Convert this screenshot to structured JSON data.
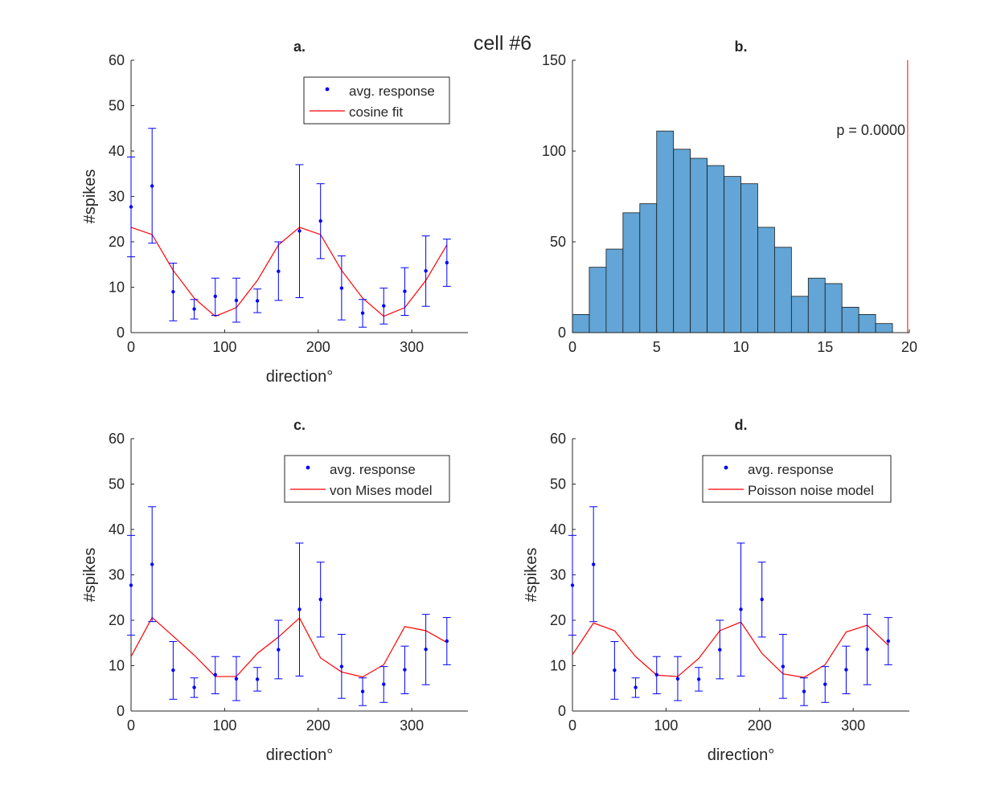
{
  "figure_title": "cell #6",
  "colors": {
    "response": "#0000ff",
    "model": "#ff0000",
    "bar_fill": "#62a5d6",
    "bar_edge": "#1a1a1a",
    "axis": "#262626"
  },
  "chart_data": [
    {
      "id": "a",
      "type": "scatter",
      "title": "a.",
      "xlabel": "direction°",
      "ylabel": "#spikes",
      "xlim": [
        0,
        360
      ],
      "ylim": [
        0,
        60
      ],
      "xticks": [
        0,
        100,
        200,
        300
      ],
      "yticks": [
        0,
        10,
        20,
        30,
        40,
        50,
        60
      ],
      "grid": false,
      "legend": [
        "avg. response",
        "cosine fit"
      ],
      "legend_location": "top-right",
      "series": [
        {
          "name": "avg. response",
          "kind": "errorbar",
          "x": [
            0,
            22.5,
            45,
            67.5,
            90,
            112.5,
            135,
            157.5,
            180,
            202.5,
            225,
            247.5,
            270,
            292.5,
            315,
            337.5
          ],
          "y": [
            27.7,
            32.3,
            9.0,
            5.2,
            8.0,
            7.1,
            7.0,
            13.5,
            22.4,
            24.6,
            9.8,
            4.3,
            5.9,
            9.1,
            13.6,
            15.4
          ],
          "lower": [
            16.7,
            19.7,
            2.6,
            3.0,
            3.8,
            2.3,
            4.4,
            7.1,
            7.7,
            16.3,
            2.8,
            1.2,
            1.9,
            3.8,
            5.8,
            10.2
          ],
          "upper": [
            38.7,
            45.0,
            15.3,
            7.3,
            12.0,
            12.0,
            9.6,
            20.0,
            37.0,
            32.8,
            16.9,
            7.3,
            9.8,
            14.3,
            21.3,
            20.6
          ]
        },
        {
          "name": "cosine fit",
          "kind": "line",
          "x": [
            0,
            22.5,
            45,
            67.5,
            90,
            112.5,
            135,
            157.5,
            180,
            202.5,
            225,
            247.5,
            270,
            292.5,
            315,
            337.5
          ],
          "y": [
            23.2,
            21.6,
            13.7,
            7.6,
            3.6,
            5.5,
            11.5,
            19.3,
            23.2,
            21.6,
            13.7,
            7.6,
            3.6,
            5.5,
            11.5,
            19.3
          ]
        }
      ]
    },
    {
      "id": "b",
      "type": "bar",
      "title": "b.",
      "xlim": [
        0,
        20
      ],
      "ylim": [
        0,
        150
      ],
      "xticks": [
        0,
        5,
        10,
        15,
        20
      ],
      "yticks": [
        0,
        50,
        100,
        150
      ],
      "grid": false,
      "annotation": "p = 0.0000",
      "bin_width": 1,
      "bin_starts": [
        0,
        1,
        2,
        3,
        4,
        5,
        6,
        7,
        8,
        9,
        10,
        11,
        12,
        13,
        14,
        15,
        16,
        17,
        18
      ],
      "values": [
        10,
        36,
        46,
        66,
        71,
        111,
        101,
        96,
        92,
        86,
        82,
        58,
        47,
        20,
        30,
        27,
        14,
        10,
        5
      ],
      "reference_line_x": 19.9
    },
    {
      "id": "c",
      "type": "scatter",
      "title": "c.",
      "xlabel": "direction°",
      "ylabel": "#spikes",
      "xlim": [
        0,
        360
      ],
      "ylim": [
        0,
        60
      ],
      "xticks": [
        0,
        100,
        200,
        300
      ],
      "yticks": [
        0,
        10,
        20,
        30,
        40,
        50,
        60
      ],
      "grid": false,
      "legend": [
        "avg. response",
        "von Mises model"
      ],
      "legend_location": "top-right",
      "series": [
        {
          "name": "avg. response",
          "kind": "errorbar",
          "x": [
            0,
            22.5,
            45,
            67.5,
            90,
            112.5,
            135,
            157.5,
            180,
            202.5,
            225,
            247.5,
            270,
            292.5,
            315,
            337.5
          ],
          "y": [
            27.7,
            32.3,
            9.0,
            5.2,
            8.0,
            7.1,
            7.0,
            13.5,
            22.4,
            24.6,
            9.8,
            4.3,
            5.9,
            9.1,
            13.6,
            15.4
          ],
          "lower": [
            16.7,
            19.7,
            2.6,
            3.0,
            3.8,
            2.3,
            4.4,
            7.1,
            7.7,
            16.3,
            2.8,
            1.2,
            1.9,
            3.8,
            5.8,
            10.2
          ],
          "upper": [
            38.7,
            45.0,
            15.3,
            7.3,
            12.0,
            12.0,
            9.6,
            20.0,
            37.0,
            32.8,
            16.9,
            7.3,
            9.8,
            14.3,
            21.3,
            20.6
          ]
        },
        {
          "name": "von Mises model",
          "kind": "line",
          "x": [
            0,
            22.5,
            45,
            67.5,
            90,
            112.5,
            135,
            157.5,
            180,
            202.5,
            225,
            247.5,
            270,
            292.5,
            315,
            337.5
          ],
          "y": [
            12.0,
            20.6,
            16.5,
            12.3,
            7.6,
            7.6,
            12.7,
            16.3,
            20.5,
            11.7,
            8.6,
            7.5,
            10.2,
            18.6,
            17.7,
            15.1
          ]
        }
      ]
    },
    {
      "id": "d",
      "type": "scatter",
      "title": "d.",
      "xlabel": "direction°",
      "ylabel": "#spikes",
      "xlim": [
        0,
        360
      ],
      "ylim": [
        0,
        60
      ],
      "xticks": [
        0,
        100,
        200,
        300
      ],
      "yticks": [
        0,
        10,
        20,
        30,
        40,
        50,
        60
      ],
      "grid": false,
      "legend": [
        "avg. response",
        "Poisson noise model"
      ],
      "legend_location": "top-right",
      "series": [
        {
          "name": "avg. response",
          "kind": "errorbar",
          "x": [
            0,
            22.5,
            45,
            67.5,
            90,
            112.5,
            135,
            157.5,
            180,
            202.5,
            225,
            247.5,
            270,
            292.5,
            315,
            337.5
          ],
          "y": [
            27.7,
            32.3,
            9.0,
            5.2,
            8.0,
            7.1,
            7.0,
            13.5,
            22.4,
            24.6,
            9.8,
            4.3,
            5.9,
            9.1,
            13.6,
            15.4
          ],
          "lower": [
            16.7,
            19.7,
            2.6,
            3.0,
            3.8,
            2.3,
            4.4,
            7.1,
            7.7,
            16.3,
            2.8,
            1.2,
            1.9,
            3.8,
            5.8,
            10.2
          ],
          "upper": [
            38.7,
            45.0,
            15.3,
            7.3,
            12.0,
            12.0,
            9.6,
            20.0,
            37.0,
            32.8,
            16.9,
            7.3,
            9.8,
            14.3,
            21.3,
            20.6
          ]
        },
        {
          "name": "Poisson noise model",
          "kind": "line",
          "x": [
            0,
            22.5,
            45,
            67.5,
            90,
            112.5,
            135,
            157.5,
            180,
            202.5,
            225,
            247.5,
            270,
            292.5,
            315,
            337.5
          ],
          "y": [
            12.4,
            19.4,
            17.7,
            12.0,
            7.9,
            7.6,
            11.6,
            17.7,
            19.6,
            12.7,
            8.2,
            7.4,
            10.2,
            17.4,
            18.9,
            14.5
          ]
        }
      ]
    }
  ]
}
